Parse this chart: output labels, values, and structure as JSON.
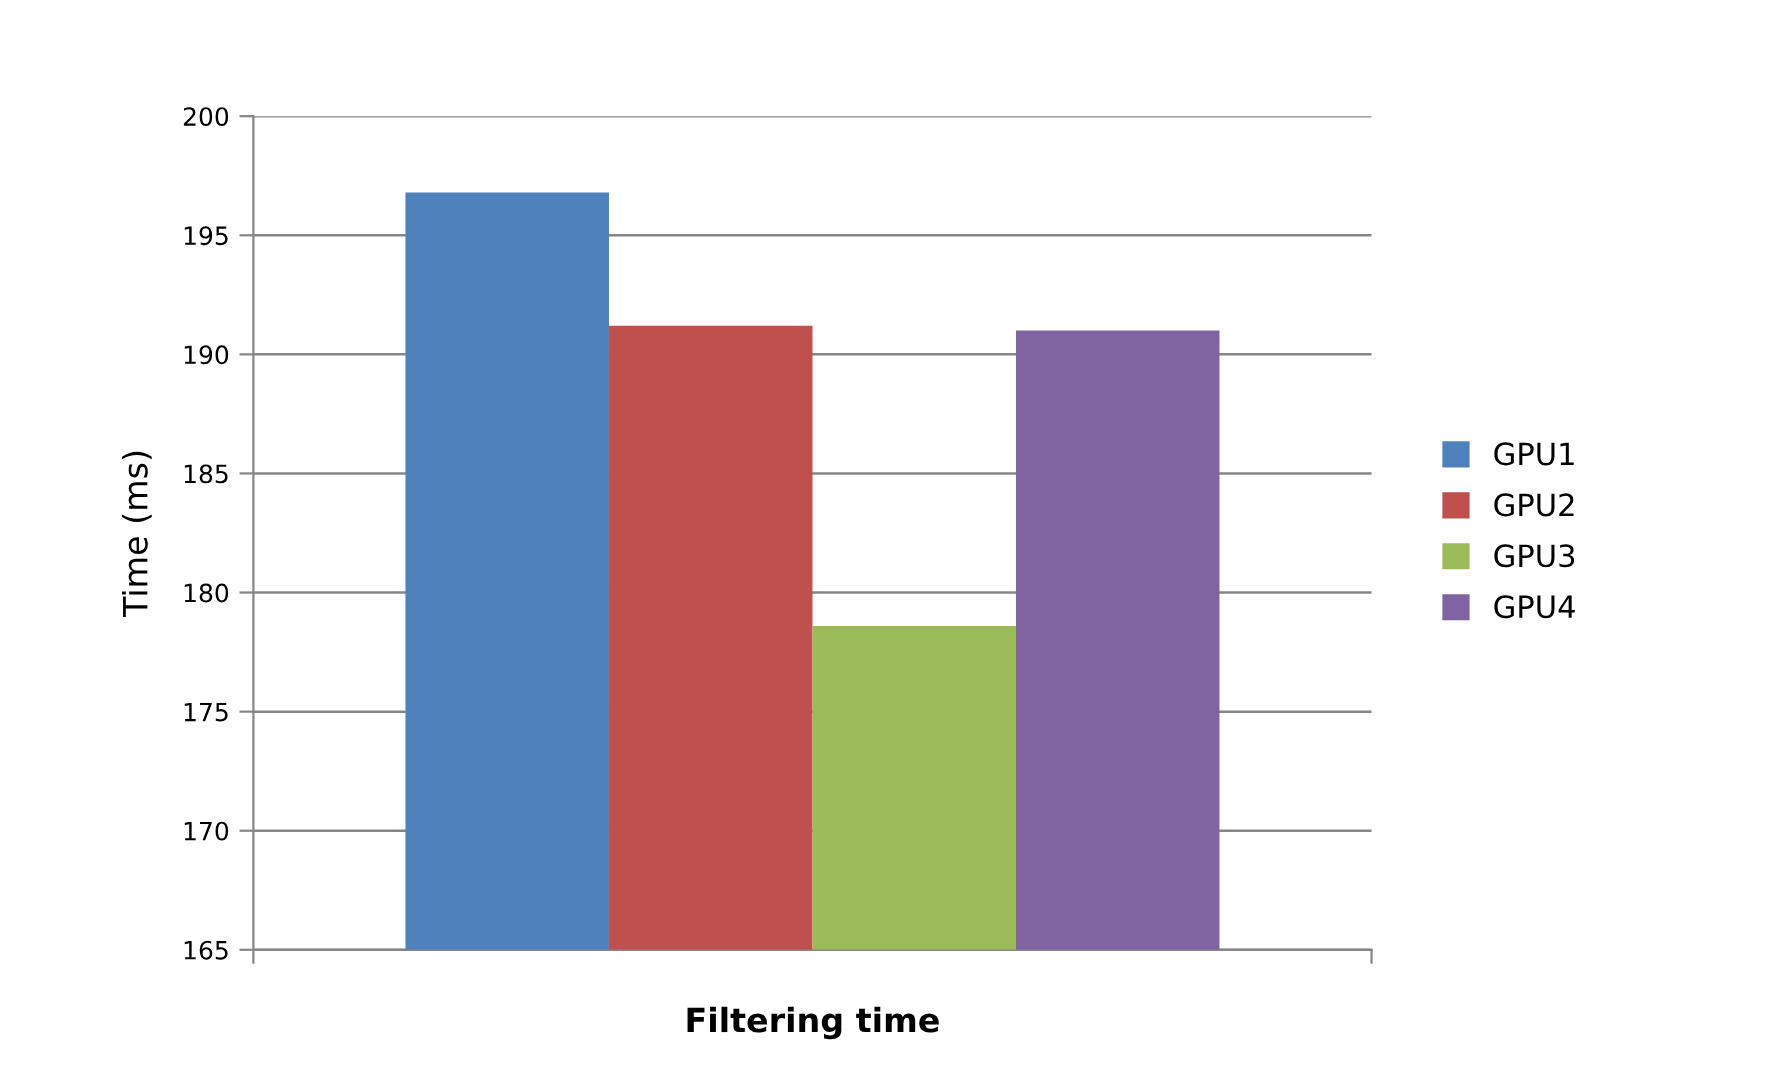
{
  "chart_data": {
    "type": "bar",
    "xlabel": "Filtering time",
    "ylabel": "Time (ms)",
    "categories": [
      null
    ],
    "series": [
      {
        "name": "GPU1",
        "color": "#4f81bd",
        "values": [
          196.8
        ]
      },
      {
        "name": "GPU2",
        "color": "#c0504d",
        "values": [
          191.2
        ]
      },
      {
        "name": "GPU3",
        "color": "#9bbb59",
        "values": [
          178.6
        ]
      },
      {
        "name": "GPU4",
        "color": "#8064a2",
        "values": [
          191.0
        ]
      }
    ],
    "ylim": [
      165,
      200
    ],
    "yticks": [
      165,
      170,
      175,
      180,
      185,
      190,
      195,
      200
    ],
    "grid": "y",
    "legend": "right"
  }
}
